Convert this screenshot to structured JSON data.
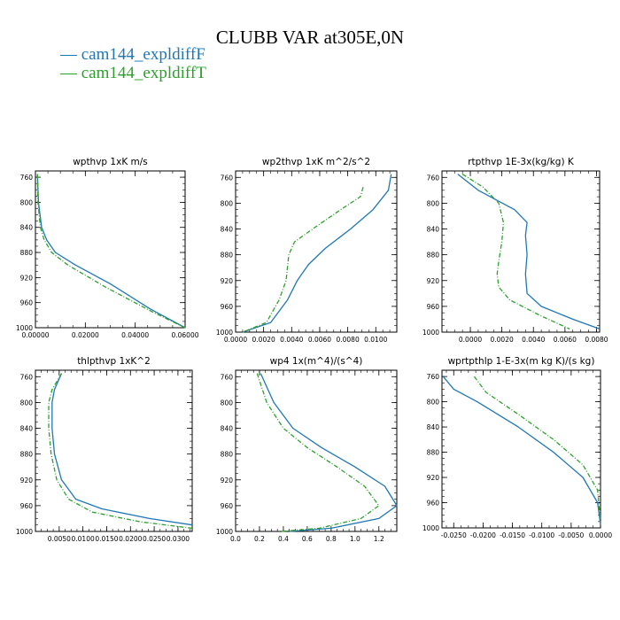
{
  "title": "CLUBB VAR at305E,0N",
  "legend": [
    {
      "label": "— cam144_expldiffF",
      "color": "#1f77b4"
    },
    {
      "label": "— cam144_expldiffT",
      "color": "#2ca02c"
    }
  ],
  "chart_data": [
    {
      "type": "line",
      "title": "wpthvp  1xK m/s",
      "xlim": [
        0.0,
        0.06
      ],
      "ylim": [
        1000,
        750
      ],
      "xticks": [
        "0.00000",
        "0.02000",
        "0.04000",
        "0.06000"
      ],
      "xtick_values": [
        0.0,
        0.02,
        0.04,
        0.06
      ],
      "yticks": [
        "760",
        "800",
        "840",
        "880",
        "920",
        "960",
        "1000"
      ],
      "ytick_values": [
        760,
        800,
        840,
        880,
        920,
        960,
        1000
      ],
      "series": [
        {
          "name": "cam144_expldiffF",
          "color": "#1f77b4",
          "dash": "",
          "x": [
            0.0008,
            0.0012,
            0.0025,
            0.0045,
            0.008,
            0.016,
            0.03,
            0.046,
            0.06
          ],
          "y": [
            755,
            800,
            840,
            860,
            880,
            900,
            930,
            970,
            1000
          ]
        },
        {
          "name": "cam144_expldiffT",
          "color": "#2ca02c",
          "dash": "5,2,1,2",
          "x": [
            0.0008,
            0.001,
            0.002,
            0.0035,
            0.0065,
            0.013,
            0.028,
            0.047,
            0.06
          ],
          "y": [
            755,
            800,
            840,
            860,
            880,
            900,
            935,
            975,
            1000
          ]
        }
      ]
    },
    {
      "type": "line",
      "title": "wp2thvp  1xK m^2/s^2",
      "xlim": [
        0.0,
        0.0115
      ],
      "ylim": [
        1000,
        750
      ],
      "xticks": [
        "0.0000",
        "0.0020",
        "0.0040",
        "0.0060",
        "0.0080",
        "0.0100"
      ],
      "xtick_values": [
        0.0,
        0.002,
        0.004,
        0.006,
        0.008,
        0.01
      ],
      "yticks": [
        "760",
        "800",
        "840",
        "880",
        "920",
        "960",
        "1000"
      ],
      "ytick_values": [
        760,
        800,
        840,
        880,
        920,
        960,
        1000
      ],
      "series": [
        {
          "name": "cam144_expldiffF",
          "color": "#1f77b4",
          "dash": "",
          "x": [
            0.0111,
            0.0109,
            0.0098,
            0.0082,
            0.0064,
            0.0052,
            0.0044,
            0.0037,
            0.0025,
            0.0005
          ],
          "y": [
            755,
            780,
            810,
            840,
            870,
            895,
            920,
            950,
            985,
            1000
          ]
        },
        {
          "name": "cam144_expldiffT",
          "color": "#2ca02c",
          "dash": "5,2,1,2",
          "x": [
            0.0091,
            0.0089,
            0.0075,
            0.0055,
            0.0042,
            0.0038,
            0.0036,
            0.0031,
            0.0022,
            0.0005
          ],
          "y": [
            775,
            790,
            810,
            840,
            860,
            880,
            920,
            950,
            985,
            1000
          ]
        }
      ]
    },
    {
      "type": "line",
      "title": "rtpthvp  1E-3x(kg/kg) K",
      "xlim": [
        -0.0018,
        0.0082
      ],
      "ylim": [
        1000,
        750
      ],
      "xticks": [
        "0.0000",
        "0.0020",
        "0.0040",
        "0.0060",
        "0.0080"
      ],
      "xtick_values": [
        0.0,
        0.002,
        0.004,
        0.006,
        0.008
      ],
      "yticks": [
        "760",
        "800",
        "840",
        "880",
        "920",
        "960",
        "1000"
      ],
      "ytick_values": [
        760,
        800,
        840,
        880,
        920,
        960,
        1000
      ],
      "series": [
        {
          "name": "cam144_expldiffF",
          "color": "#1f77b4",
          "dash": "",
          "x": [
            -0.0008,
            0.0005,
            0.0028,
            0.0036,
            0.0035,
            0.0036,
            0.0035,
            0.0036,
            0.0045,
            0.0065,
            0.0082
          ],
          "y": [
            755,
            780,
            810,
            830,
            850,
            880,
            910,
            940,
            960,
            980,
            995
          ]
        },
        {
          "name": "cam144_expldiffT",
          "color": "#2ca02c",
          "dash": "5,2,1,2",
          "x": [
            -0.0005,
            0.0008,
            0.0018,
            0.0021,
            0.002,
            0.0018,
            0.0017,
            0.0018,
            0.0025,
            0.0045,
            0.0063
          ],
          "y": [
            755,
            775,
            800,
            830,
            860,
            890,
            910,
            930,
            950,
            975,
            995
          ]
        }
      ]
    },
    {
      "type": "line",
      "title": "thlpthvp  1xK^2",
      "xlim": [
        0.0,
        0.033
      ],
      "ylim": [
        1000,
        750
      ],
      "xticks": [
        "0.0050",
        "0.0100",
        "0.0150",
        "0.0200",
        "0.0250",
        "0.0300"
      ],
      "xtick_values": [
        0.005,
        0.01,
        0.015,
        0.02,
        0.025,
        0.03
      ],
      "yticks": [
        "760",
        "800",
        "840",
        "880",
        "920",
        "960",
        "1000"
      ],
      "ytick_values": [
        760,
        800,
        840,
        880,
        920,
        960,
        1000
      ],
      "series": [
        {
          "name": "cam144_expldiffF",
          "color": "#1f77b4",
          "dash": "",
          "x": [
            0.0055,
            0.004,
            0.0035,
            0.0035,
            0.004,
            0.0055,
            0.0085,
            0.014,
            0.024,
            0.033
          ],
          "y": [
            755,
            780,
            800,
            840,
            880,
            920,
            950,
            965,
            980,
            990
          ]
        },
        {
          "name": "cam144_expldiffT",
          "color": "#2ca02c",
          "dash": "5,2,1,2",
          "x": [
            0.0055,
            0.0035,
            0.0028,
            0.0028,
            0.0033,
            0.0045,
            0.007,
            0.012,
            0.022,
            0.033
          ],
          "y": [
            755,
            780,
            800,
            840,
            880,
            920,
            950,
            970,
            985,
            995
          ]
        }
      ]
    },
    {
      "type": "line",
      "title": "wp4  1x(m^4)/(s^4)",
      "xlim": [
        0.0,
        1.35
      ],
      "ylim": [
        1000,
        750
      ],
      "xticks": [
        "0.0",
        "0.2",
        "0.4",
        "0.6",
        "0.8",
        "1.0",
        "1.2"
      ],
      "xtick_values": [
        0.0,
        0.2,
        0.4,
        0.6,
        0.8,
        1.0,
        1.2
      ],
      "yticks": [
        "760",
        "800",
        "840",
        "880",
        "920",
        "960",
        "1000"
      ],
      "ytick_values": [
        760,
        800,
        840,
        880,
        920,
        960,
        1000
      ],
      "series": [
        {
          "name": "cam144_expldiffF",
          "color": "#1f77b4",
          "dash": "",
          "x": [
            0.21,
            0.32,
            0.48,
            0.72,
            1.0,
            1.25,
            1.35,
            1.2,
            0.8,
            0.45
          ],
          "y": [
            755,
            800,
            840,
            870,
            900,
            930,
            960,
            980,
            995,
            1000
          ]
        },
        {
          "name": "cam144_expldiffT",
          "color": "#2ca02c",
          "dash": "5,2,1,2",
          "x": [
            0.18,
            0.26,
            0.4,
            0.6,
            0.85,
            1.08,
            1.2,
            1.05,
            0.7,
            0.38
          ],
          "y": [
            755,
            800,
            840,
            870,
            900,
            930,
            960,
            980,
            995,
            1000
          ]
        }
      ]
    },
    {
      "type": "line",
      "title": "wprtpthlp  1-E-3x(m kg K)/(s kg)",
      "xlim": [
        -0.027,
        0.0
      ],
      "ylim": [
        1000,
        750
      ],
      "xticks": [
        "-0.0250",
        "-0.0200",
        "-0.0150",
        "-0.0100",
        "-0.0050",
        "0.0000"
      ],
      "xtick_values": [
        -0.025,
        -0.02,
        -0.015,
        -0.01,
        -0.005,
        0.0
      ],
      "yticks": [
        "760",
        "800",
        "840",
        "880",
        "920",
        "960",
        "1000"
      ],
      "ytick_values": [
        760,
        800,
        840,
        880,
        920,
        960,
        1000
      ],
      "series": [
        {
          "name": "cam144_expldiffF",
          "color": "#1f77b4",
          "dash": "",
          "x": [
            -0.0268,
            -0.025,
            -0.021,
            -0.014,
            -0.008,
            -0.003,
            -0.0005,
            0.0
          ],
          "y": [
            760,
            780,
            800,
            840,
            880,
            920,
            960,
            995
          ]
        },
        {
          "name": "cam144_expldiffT",
          "color": "#2ca02c",
          "dash": "5,2,1,2",
          "x": [
            -0.0215,
            -0.0195,
            -0.014,
            -0.008,
            -0.003,
            -0.0005,
            0.0
          ],
          "y": [
            760,
            785,
            820,
            860,
            900,
            940,
            990
          ]
        }
      ]
    }
  ]
}
